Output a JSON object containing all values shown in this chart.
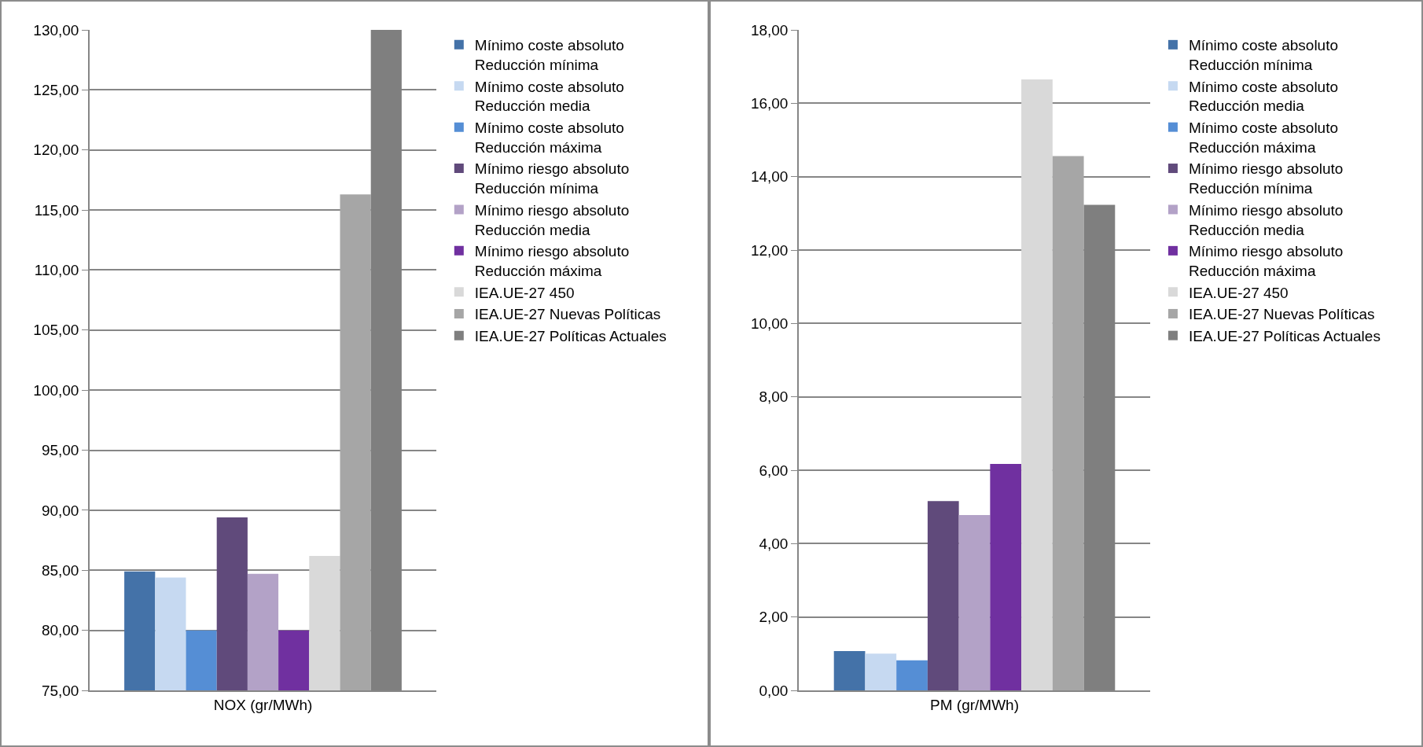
{
  "chart_data": [
    {
      "type": "bar",
      "categories": [
        "NOX (gr/MWh)"
      ],
      "ylim": [
        75,
        130
      ],
      "yticks": [
        {
          "value": 75,
          "label": "75,00"
        },
        {
          "value": 80,
          "label": "80,00"
        },
        {
          "value": 85,
          "label": "85,00"
        },
        {
          "value": 90,
          "label": "90,00"
        },
        {
          "value": 95,
          "label": "95,00"
        },
        {
          "value": 100,
          "label": "100,00"
        },
        {
          "value": 105,
          "label": "105,00"
        },
        {
          "value": 110,
          "label": "110,00"
        },
        {
          "value": 115,
          "label": "115,00"
        },
        {
          "value": 120,
          "label": "120,00"
        },
        {
          "value": 125,
          "label": "125,00"
        },
        {
          "value": 130,
          "label": "130,00"
        }
      ],
      "grid": "y",
      "legend": "right",
      "series": [
        {
          "name": "Mínimo coste absoluto\nReducción mínima",
          "color": "#4472a8",
          "values": [
            84.9
          ]
        },
        {
          "name": "Mínimo coste absoluto\nReducción media",
          "color": "#c6d9f1",
          "values": [
            84.4
          ]
        },
        {
          "name": "Mínimo coste absoluto\nReducción máxima",
          "color": "#558ed5",
          "values": [
            80.0
          ]
        },
        {
          "name": "Mínimo riesgo absoluto\nReducción mínima",
          "color": "#604a7b",
          "values": [
            89.4
          ]
        },
        {
          "name": "Mínimo riesgo absoluto\nReducción media",
          "color": "#b3a2c7",
          "values": [
            84.7
          ]
        },
        {
          "name": "Mínimo riesgo absoluto\nReducción máxima",
          "color": "#7030a0",
          "values": [
            80.0
          ]
        },
        {
          "name": "IEA.UE-27 450",
          "color": "#d9d9d9",
          "values": [
            86.2
          ]
        },
        {
          "name": "IEA.UE-27 Nuevas Políticas",
          "color": "#a6a6a6",
          "values": [
            116.3
          ]
        },
        {
          "name": "IEA.UE-27 Políticas Actuales",
          "color": "#7f7f7f",
          "values": [
            130.0
          ]
        }
      ]
    },
    {
      "type": "bar",
      "categories": [
        "PM (gr/MWh)"
      ],
      "ylim": [
        0,
        18
      ],
      "yticks": [
        {
          "value": 0,
          "label": "0,00"
        },
        {
          "value": 2,
          "label": "2,00"
        },
        {
          "value": 4,
          "label": "4,00"
        },
        {
          "value": 6,
          "label": "6,00"
        },
        {
          "value": 8,
          "label": "8,00"
        },
        {
          "value": 10,
          "label": "10,00"
        },
        {
          "value": 12,
          "label": "12,00"
        },
        {
          "value": 14,
          "label": "14,00"
        },
        {
          "value": 16,
          "label": "16,00"
        },
        {
          "value": 18,
          "label": "18,00"
        }
      ],
      "grid": "y",
      "legend": "right",
      "series": [
        {
          "name": "Mínimo coste absoluto\nReducción mínima",
          "color": "#4472a8",
          "values": [
            1.07
          ]
        },
        {
          "name": "Mínimo coste absoluto\nReducción media",
          "color": "#c6d9f1",
          "values": [
            1.0
          ]
        },
        {
          "name": "Mínimo coste absoluto\nReducción máxima",
          "color": "#558ed5",
          "values": [
            0.82
          ]
        },
        {
          "name": "Mínimo riesgo absoluto\nReducción mínima",
          "color": "#604a7b",
          "values": [
            5.16
          ]
        },
        {
          "name": "Mínimo riesgo absoluto\nReducción media",
          "color": "#b3a2c7",
          "values": [
            4.78
          ]
        },
        {
          "name": "Mínimo riesgo absoluto\nReducción máxima",
          "color": "#7030a0",
          "values": [
            6.17
          ]
        },
        {
          "name": "IEA.UE-27 450",
          "color": "#d9d9d9",
          "values": [
            16.65
          ]
        },
        {
          "name": "IEA.UE-27 Nuevas Políticas",
          "color": "#a6a6a6",
          "values": [
            14.56
          ]
        },
        {
          "name": "IEA.UE-27 Políticas Actuales",
          "color": "#7f7f7f",
          "values": [
            13.23
          ]
        }
      ]
    }
  ]
}
